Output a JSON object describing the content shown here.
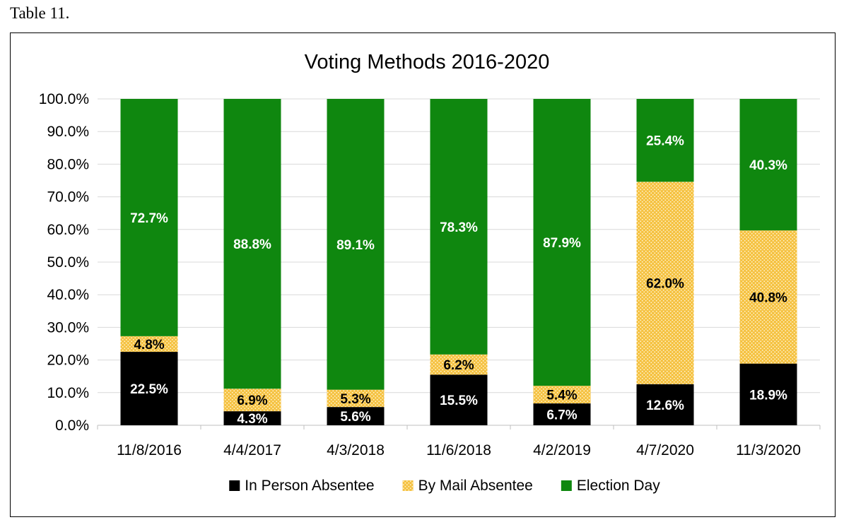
{
  "caption": "Table 11.",
  "chart_data": {
    "type": "bar",
    "stacked": true,
    "percent_stacked": true,
    "title": "Voting Methods 2016-2020",
    "xlabel": "",
    "ylabel": "",
    "ylim": [
      0,
      100
    ],
    "yticks": [
      "0.0%",
      "10.0%",
      "20.0%",
      "30.0%",
      "40.0%",
      "50.0%",
      "60.0%",
      "70.0%",
      "80.0%",
      "90.0%",
      "100.0%"
    ],
    "categories": [
      "11/8/2016",
      "4/4/2017",
      "4/3/2018",
      "11/6/2018",
      "4/2/2019",
      "4/7/2020",
      "11/3/2020"
    ],
    "series": [
      {
        "name": "In Person Absentee",
        "color": "#000000",
        "label_color": "#ffffff",
        "values": [
          22.5,
          4.3,
          5.6,
          15.5,
          6.7,
          12.6,
          18.9
        ],
        "labels": [
          "22.5%",
          "4.3%",
          "5.6%",
          "15.5%",
          "6.7%",
          "12.6%",
          "18.9%"
        ]
      },
      {
        "name": "By Mail Absentee",
        "color": "#f5c242",
        "pattern": "dotted",
        "label_color": "#000000",
        "values": [
          4.8,
          6.9,
          5.3,
          6.2,
          5.4,
          62.0,
          40.8
        ],
        "labels": [
          "4.8%",
          "6.9%",
          "5.3%",
          "6.2%",
          "5.4%",
          "62.0%",
          "40.8%"
        ]
      },
      {
        "name": "Election Day",
        "color": "#0f870f",
        "label_color": "#ffffff",
        "values": [
          72.7,
          88.8,
          89.1,
          78.3,
          87.9,
          25.4,
          40.3
        ],
        "labels": [
          "72.7%",
          "88.8%",
          "89.1%",
          "78.3%",
          "87.9%",
          "25.4%",
          "40.3%"
        ]
      }
    ],
    "grid": true,
    "legend_position": "bottom"
  }
}
